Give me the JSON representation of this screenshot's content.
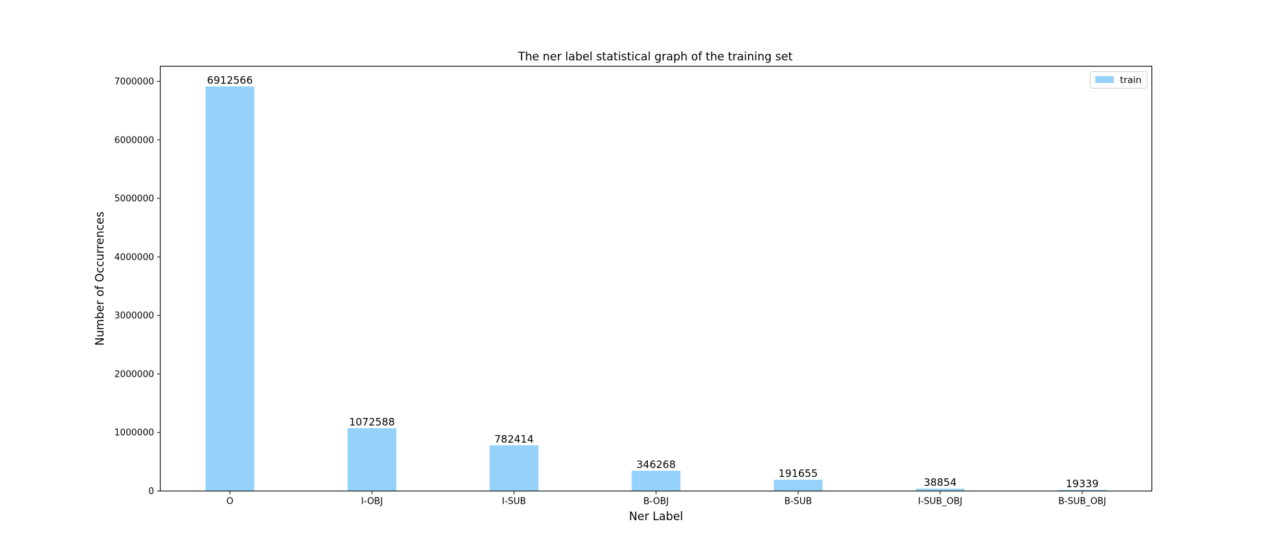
{
  "chart_data": {
    "type": "bar",
    "title": "The ner label statistical graph of the training set",
    "xlabel": "Ner Label",
    "ylabel": "Number of Occurrences",
    "categories": [
      "O",
      "I-OBJ",
      "I-SUB",
      "B-OBJ",
      "B-SUB",
      "I-SUB_OBJ",
      "B-SUB_OBJ"
    ],
    "series": [
      {
        "name": "train",
        "values": [
          6912566,
          1072588,
          782414,
          346268,
          191655,
          38854,
          19339
        ]
      }
    ],
    "data_labels": [
      "6912566",
      "1072588",
      "782414",
      "346268",
      "191655",
      "38854",
      "19339"
    ],
    "yticks": [
      0,
      1000000,
      2000000,
      3000000,
      4000000,
      5000000,
      6000000,
      7000000
    ],
    "ytick_labels": [
      "0",
      "1000000",
      "2000000",
      "3000000",
      "4000000",
      "5000000",
      "6000000",
      "7000000"
    ],
    "ylim": [
      0,
      7258194
    ],
    "grid": false,
    "legend": {
      "position": "top-right",
      "entries": [
        "train"
      ]
    },
    "bar_color": "#94d2fb"
  }
}
